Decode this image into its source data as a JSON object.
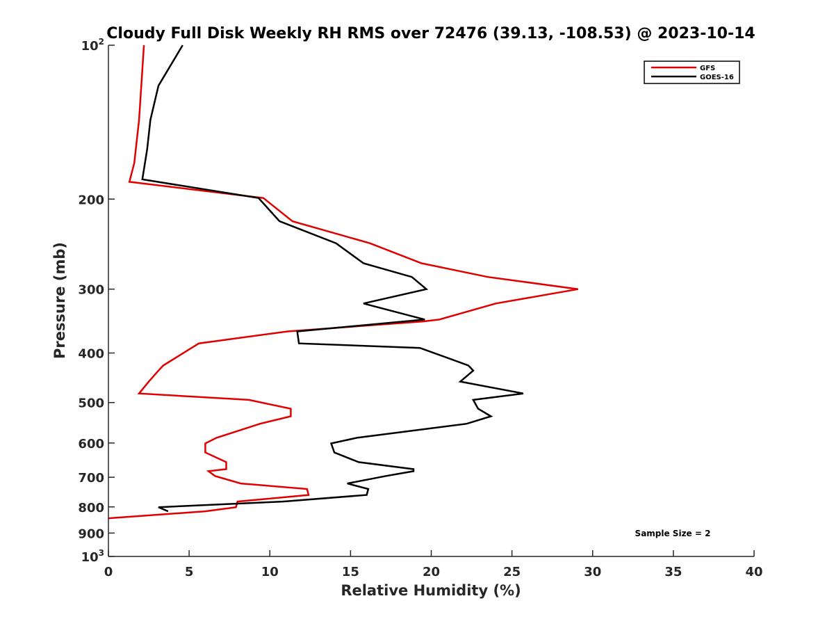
{
  "chart_data": {
    "type": "line",
    "title": "Cloudy Full Disk Weekly RH RMS over 72476 (39.13, -108.53) @ 2023-10-14",
    "xlabel": "Relative Humidity (%)",
    "ylabel": "Pressure (mb)",
    "xlim": [
      0,
      40
    ],
    "ylim": [
      100,
      1000
    ],
    "y_scale": "log",
    "y_reversed": true,
    "x_ticks": [
      0,
      5,
      10,
      15,
      20,
      25,
      30,
      35,
      40
    ],
    "y_ticks": [
      {
        "value": 100,
        "label": "10",
        "sup": "2"
      },
      {
        "value": 200,
        "label": "200"
      },
      {
        "value": 300,
        "label": "300"
      },
      {
        "value": 400,
        "label": "400"
      },
      {
        "value": 500,
        "label": "500"
      },
      {
        "value": 600,
        "label": "600"
      },
      {
        "value": 700,
        "label": "700"
      },
      {
        "value": 800,
        "label": "800"
      },
      {
        "value": 900,
        "label": "900"
      },
      {
        "value": 1000,
        "label": "10",
        "sup": "3"
      }
    ],
    "grid": false,
    "legend_position": "top-right",
    "series": [
      {
        "name": "GFS",
        "color": "#e00000",
        "points": [
          [
            2.2,
            100
          ],
          [
            1.9,
            140
          ],
          [
            1.6,
            170
          ],
          [
            1.3,
            185
          ],
          [
            9.6,
            199
          ],
          [
            11.4,
            221
          ],
          [
            16.2,
            244
          ],
          [
            19.4,
            267
          ],
          [
            23.5,
            284
          ],
          [
            29.1,
            300
          ],
          [
            24.0,
            320
          ],
          [
            20.5,
            344
          ],
          [
            19.5,
            347
          ],
          [
            11.1,
            363
          ],
          [
            5.6,
            383
          ],
          [
            3.4,
            423
          ],
          [
            3.1,
            433
          ],
          [
            2.5,
            455
          ],
          [
            1.9,
            480
          ],
          [
            8.7,
            494
          ],
          [
            11.3,
            514
          ],
          [
            11.3,
            532
          ],
          [
            9.4,
            550
          ],
          [
            6.7,
            586
          ],
          [
            6.0,
            601
          ],
          [
            6.0,
            626
          ],
          [
            7.3,
            654
          ],
          [
            7.3,
            675
          ],
          [
            6.2,
            681
          ],
          [
            6.6,
            696
          ],
          [
            8.2,
            720
          ],
          [
            12.3,
            738
          ],
          [
            12.4,
            758
          ],
          [
            8.0,
            781
          ],
          [
            7.9,
            801
          ],
          [
            6.0,
            816
          ],
          [
            0.0,
            842
          ]
        ]
      },
      {
        "name": "GOES-16",
        "color": "#000000",
        "points": [
          [
            4.6,
            100
          ],
          [
            3.1,
            120
          ],
          [
            2.6,
            140
          ],
          [
            2.4,
            160
          ],
          [
            2.1,
            183
          ],
          [
            9.3,
            199
          ],
          [
            10.6,
            221
          ],
          [
            14.1,
            244
          ],
          [
            15.8,
            267
          ],
          [
            18.8,
            284
          ],
          [
            19.7,
            300
          ],
          [
            15.8,
            320
          ],
          [
            19.6,
            344
          ],
          [
            11.7,
            363
          ],
          [
            11.8,
            383
          ],
          [
            19.3,
            391
          ],
          [
            22.3,
            423
          ],
          [
            22.6,
            433
          ],
          [
            21.8,
            455
          ],
          [
            25.7,
            480
          ],
          [
            22.6,
            494
          ],
          [
            22.9,
            514
          ],
          [
            23.7,
            532
          ],
          [
            22.2,
            550
          ],
          [
            15.4,
            586
          ],
          [
            13.8,
            601
          ],
          [
            14.0,
            626
          ],
          [
            15.5,
            654
          ],
          [
            18.9,
            675
          ],
          [
            18.9,
            681
          ],
          [
            17.2,
            696
          ],
          [
            14.8,
            720
          ],
          [
            16.1,
            738
          ],
          [
            16.0,
            758
          ],
          [
            10.8,
            781
          ],
          [
            3.1,
            801
          ],
          [
            3.7,
            816
          ]
        ]
      }
    ],
    "annotations": [
      {
        "text": "Sample Size = 2"
      }
    ]
  }
}
